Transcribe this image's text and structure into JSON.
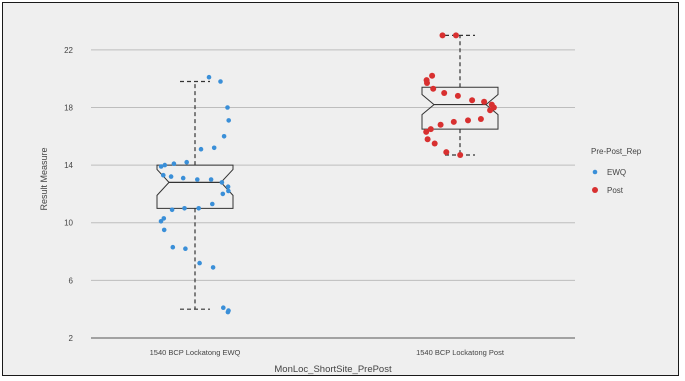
{
  "chart_data": {
    "type": "box",
    "xlabel": "MonLoc_ShortSite_PrePost",
    "ylabel": "Result Measure",
    "ylim": [
      2,
      24
    ],
    "yticks": [
      2,
      6,
      10,
      14,
      18,
      22
    ],
    "grid": true,
    "legend_placement": "right",
    "categories": [
      "1540 BCP Lockatong EWQ",
      "1540 BCP Lockatong Post"
    ],
    "legend": {
      "title": "Pre-Post_Rep",
      "entries": [
        "EWQ",
        "Post"
      ]
    },
    "series": [
      {
        "name": "EWQ",
        "color": "#3a8fd8",
        "box": {
          "whisker_low": 4.0,
          "q1": 11.0,
          "median": 12.8,
          "q3": 14.0,
          "whisker_high": 19.8,
          "notch_low": 11.9,
          "notch_high": 13.7
        },
        "points": [
          20.1,
          19.8,
          18.0,
          17.1,
          16.0,
          15.2,
          15.1,
          14.2,
          14.1,
          14.0,
          13.9,
          13.3,
          13.2,
          13.1,
          13.0,
          13.0,
          12.8,
          12.5,
          12.2,
          12.0,
          11.3,
          11.0,
          11.0,
          10.9,
          10.3,
          10.1,
          9.5,
          8.3,
          8.2,
          7.2,
          6.9,
          4.1,
          3.9,
          3.8
        ]
      },
      {
        "name": "Post",
        "color": "#d83030",
        "box": {
          "whisker_low": 14.7,
          "q1": 16.5,
          "median": 18.2,
          "q3": 19.4,
          "whisker_high": 23.0,
          "notch_low": 17.5,
          "notch_high": 18.9
        },
        "points": [
          23.0,
          23.0,
          20.2,
          19.9,
          19.7,
          19.3,
          19.0,
          18.8,
          18.5,
          18.4,
          18.2,
          18.0,
          17.8,
          17.2,
          17.1,
          17.0,
          16.8,
          16.5,
          16.3,
          15.8,
          15.5,
          14.9,
          14.7
        ]
      }
    ]
  }
}
